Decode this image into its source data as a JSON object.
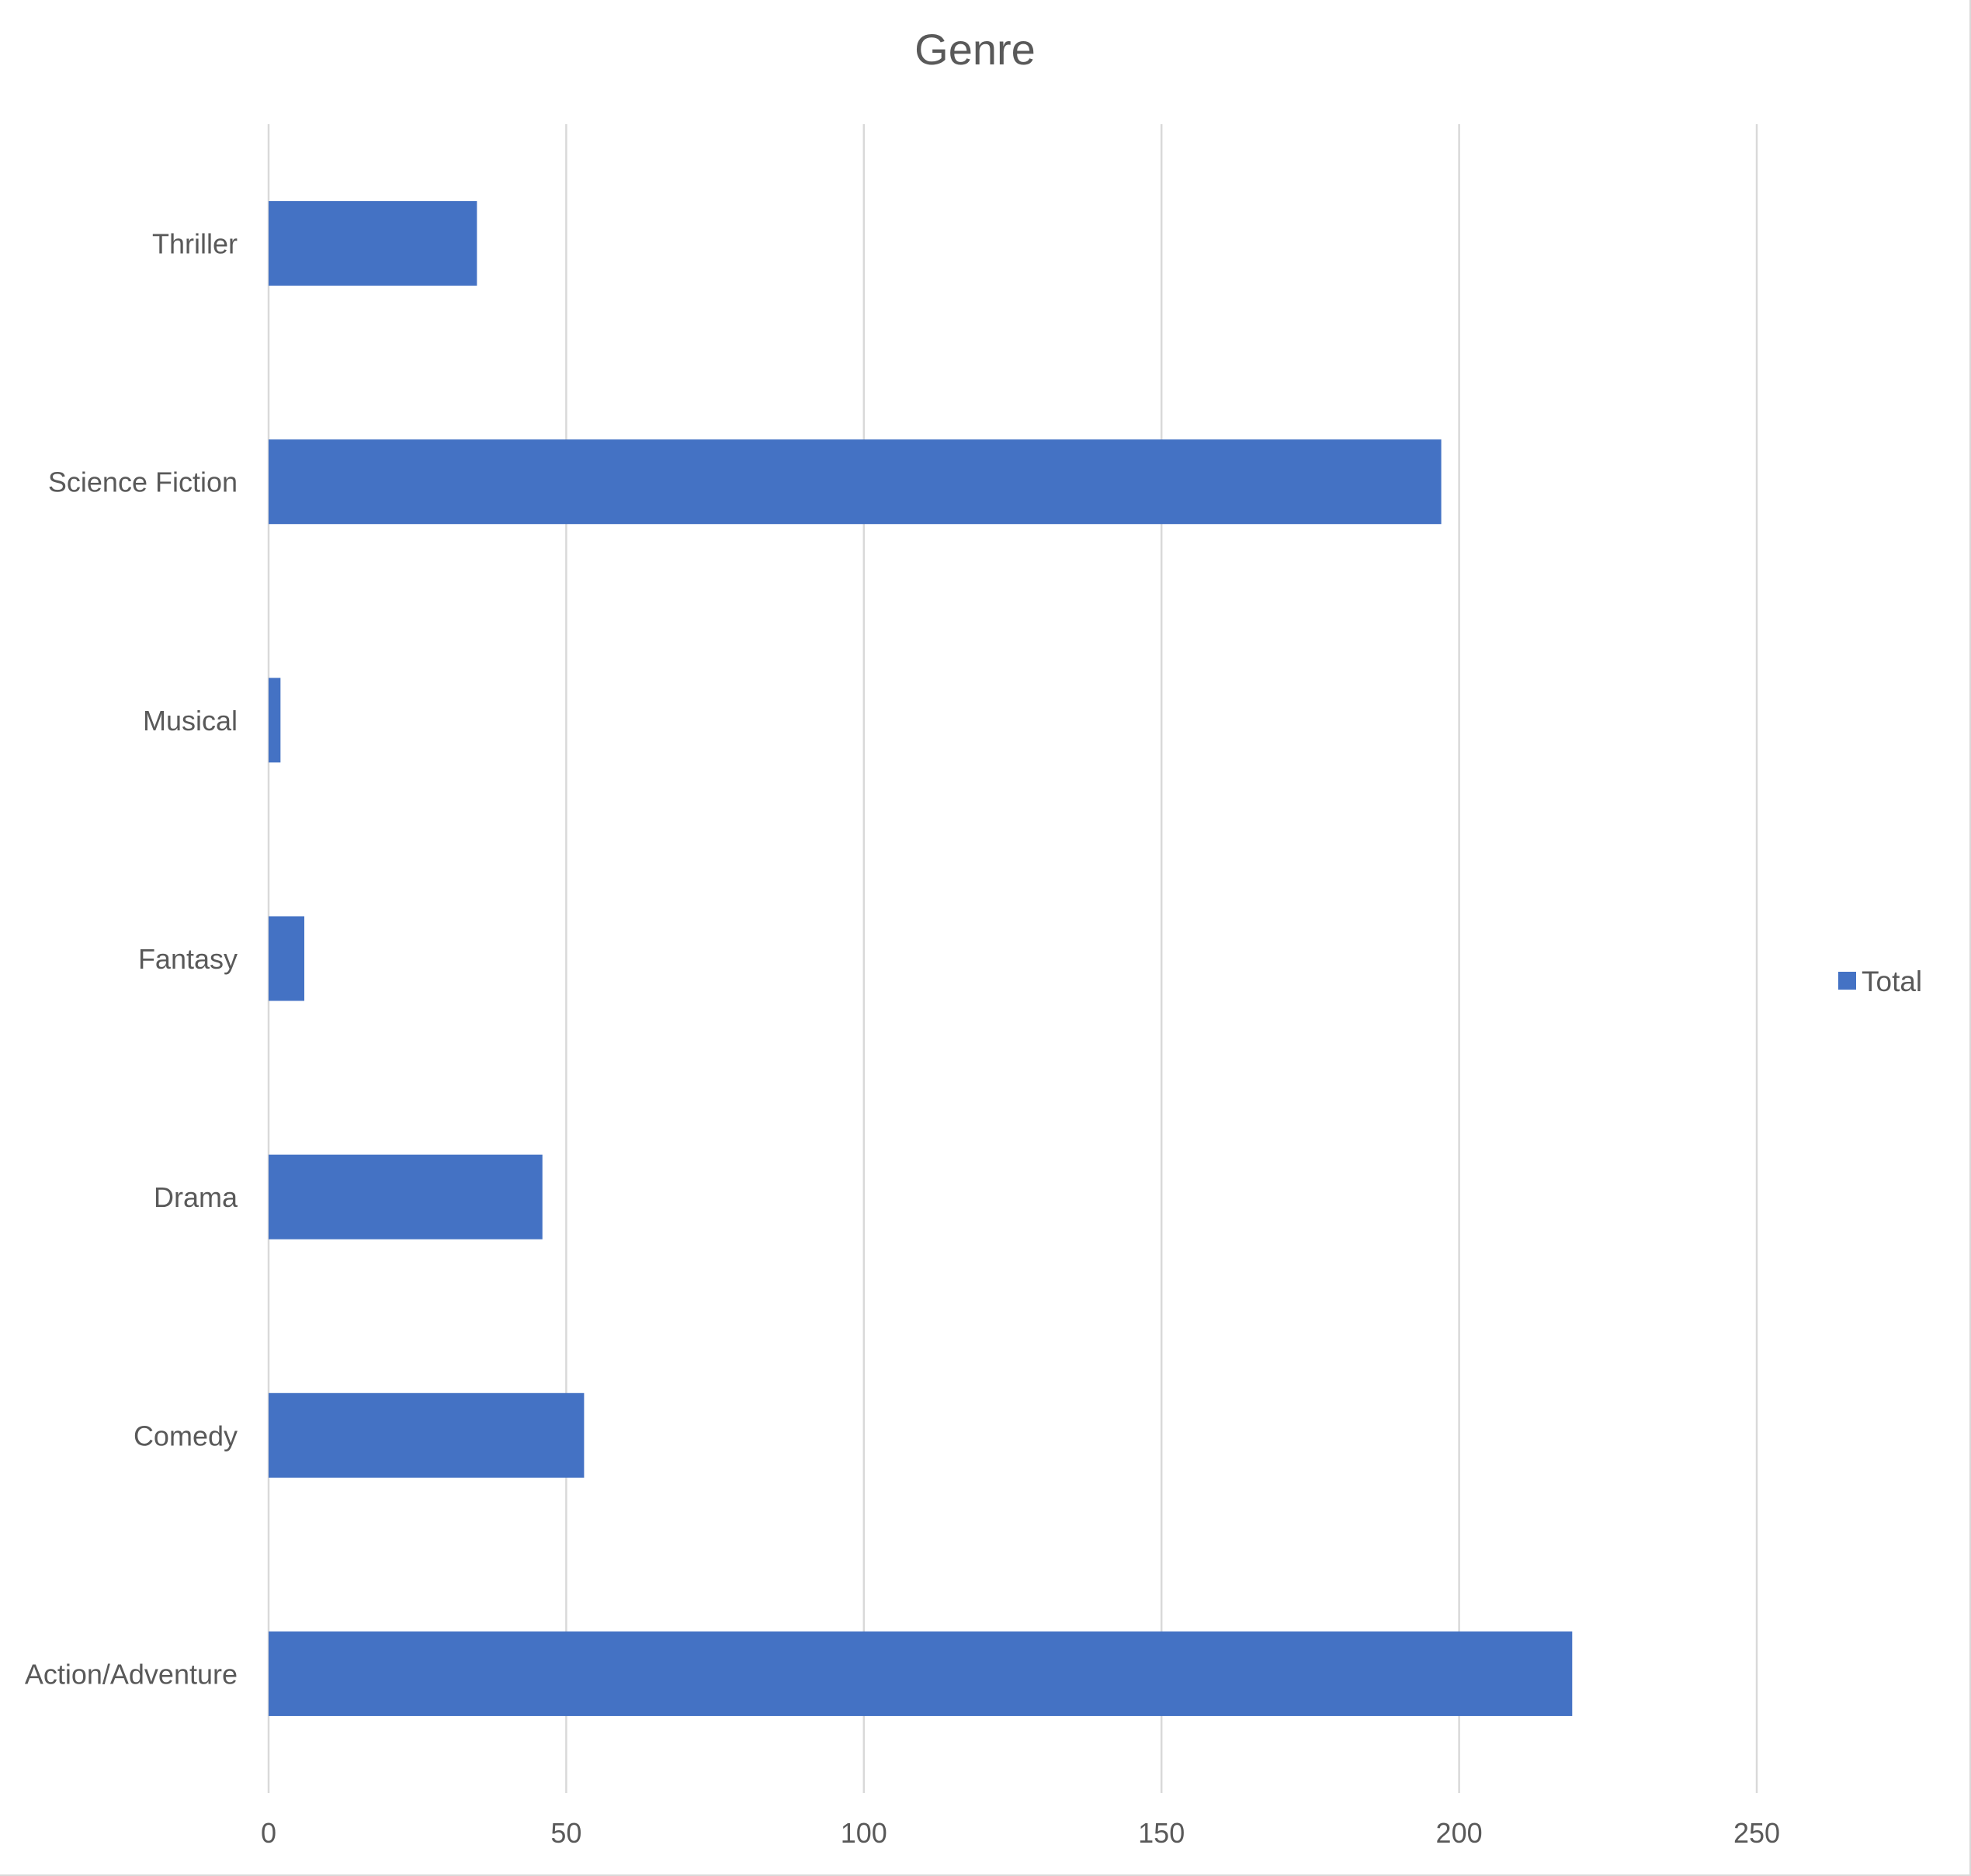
{
  "chart_data": {
    "type": "bar",
    "orientation": "horizontal",
    "title": "Genre",
    "xlabel": "",
    "ylabel": "",
    "categories": [
      "Thriller",
      "Science Fiction",
      "Musical",
      "Fantasy",
      "Drama",
      "Comedy",
      "Action/Adventure"
    ],
    "series": [
      {
        "name": "Total",
        "color": "#4472c4",
        "values": [
          35,
          197,
          2,
          6,
          46,
          53,
          219
        ]
      }
    ],
    "xlim": [
      0,
      250
    ],
    "xticks": [
      0,
      50,
      100,
      150,
      200,
      250
    ],
    "grid": true,
    "legend": "right"
  }
}
